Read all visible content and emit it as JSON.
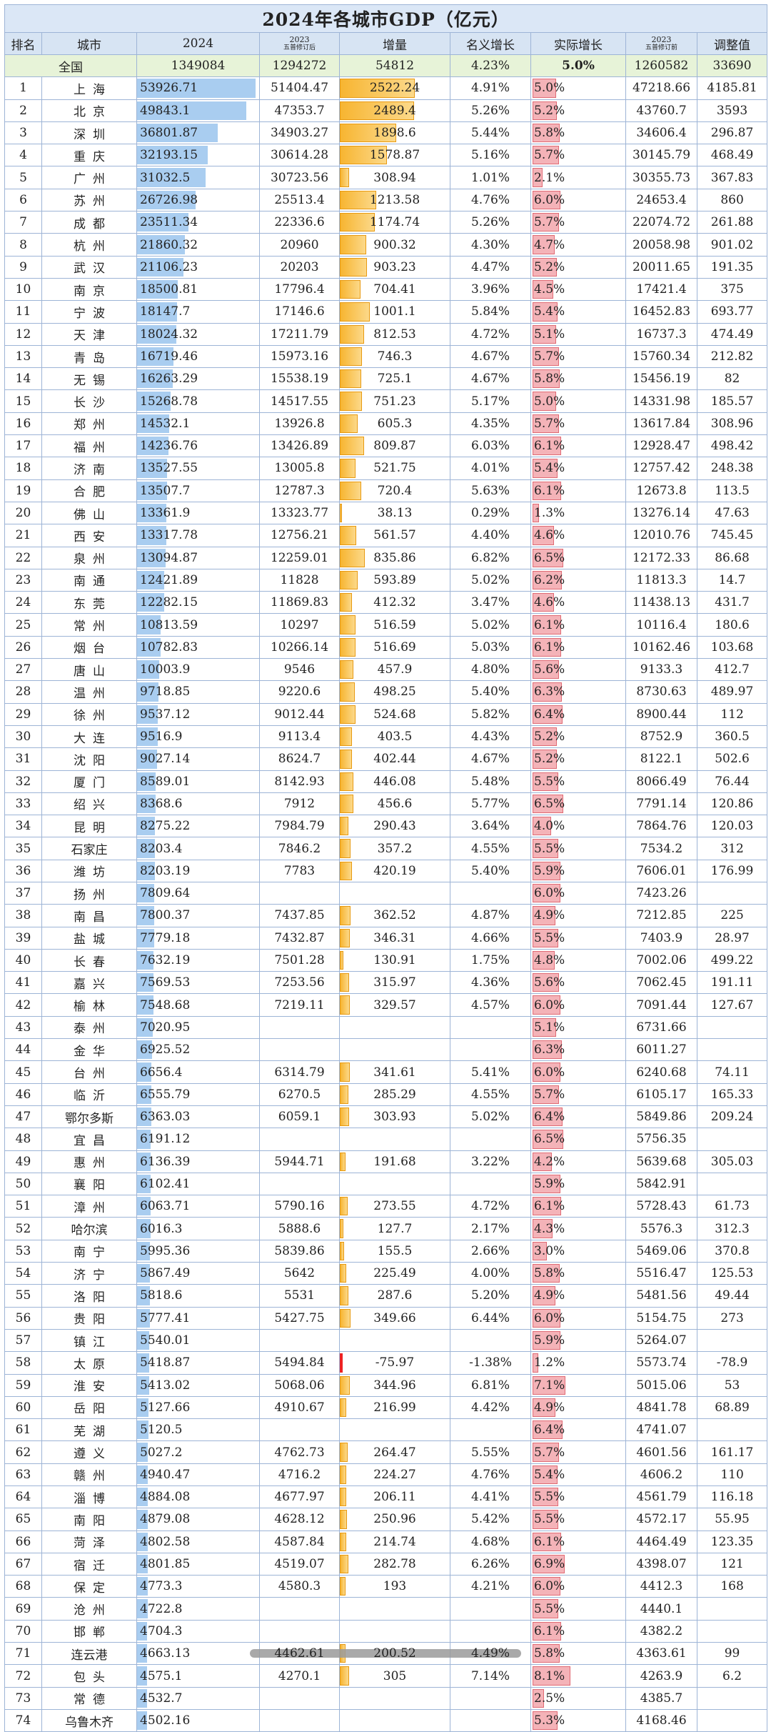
{
  "title": "2024年各城市GDP（亿元）",
  "headers": {
    "rank": "排名",
    "city": "城市",
    "gdp2024": "2024",
    "gdp2023_year": "2023",
    "gdp2023_sub": "五普修订后",
    "increase": "增量",
    "nominal": "名义增长",
    "real": "实际增长",
    "orig2023_year": "2023",
    "orig2023_sub": "五普修订前",
    "adjust": "调整值"
  },
  "national": {
    "label": "全国",
    "gdp2024": "1349084",
    "gdp2023": "1294272",
    "increase": "54812",
    "nominal": "4.23%",
    "real": "5.0%",
    "orig2023": "1260582",
    "adjust": "33690"
  },
  "rows": [
    {
      "rank": "1",
      "city": "上海",
      "gdp2024": "53926.71",
      "gdp2023": "51404.47",
      "increase": "2522.24",
      "nominal": "4.91%",
      "real": "5.0%",
      "orig2023": "47218.66",
      "adjust": "4185.81"
    },
    {
      "rank": "2",
      "city": "北京",
      "gdp2024": "49843.1",
      "gdp2023": "47353.7",
      "increase": "2489.4",
      "nominal": "5.26%",
      "real": "5.2%",
      "orig2023": "43760.7",
      "adjust": "3593"
    },
    {
      "rank": "3",
      "city": "深圳",
      "gdp2024": "36801.87",
      "gdp2023": "34903.27",
      "increase": "1898.6",
      "nominal": "5.44%",
      "real": "5.8%",
      "orig2023": "34606.4",
      "adjust": "296.87"
    },
    {
      "rank": "4",
      "city": "重庆",
      "gdp2024": "32193.15",
      "gdp2023": "30614.28",
      "increase": "1578.87",
      "nominal": "5.16%",
      "real": "5.7%",
      "orig2023": "30145.79",
      "adjust": "468.49"
    },
    {
      "rank": "5",
      "city": "广州",
      "gdp2024": "31032.5",
      "gdp2023": "30723.56",
      "increase": "308.94",
      "nominal": "1.01%",
      "real": "2.1%",
      "orig2023": "30355.73",
      "adjust": "367.83"
    },
    {
      "rank": "6",
      "city": "苏州",
      "gdp2024": "26726.98",
      "gdp2023": "25513.4",
      "increase": "1213.58",
      "nominal": "4.76%",
      "real": "6.0%",
      "orig2023": "24653.4",
      "adjust": "860"
    },
    {
      "rank": "7",
      "city": "成都",
      "gdp2024": "23511.34",
      "gdp2023": "22336.6",
      "increase": "1174.74",
      "nominal": "5.26%",
      "real": "5.7%",
      "orig2023": "22074.72",
      "adjust": "261.88"
    },
    {
      "rank": "8",
      "city": "杭州",
      "gdp2024": "21860.32",
      "gdp2023": "20960",
      "increase": "900.32",
      "nominal": "4.30%",
      "real": "4.7%",
      "orig2023": "20058.98",
      "adjust": "901.02"
    },
    {
      "rank": "9",
      "city": "武汉",
      "gdp2024": "21106.23",
      "gdp2023": "20203",
      "increase": "903.23",
      "nominal": "4.47%",
      "real": "5.2%",
      "orig2023": "20011.65",
      "adjust": "191.35"
    },
    {
      "rank": "10",
      "city": "南京",
      "gdp2024": "18500.81",
      "gdp2023": "17796.4",
      "increase": "704.41",
      "nominal": "3.96%",
      "real": "4.5%",
      "orig2023": "17421.4",
      "adjust": "375"
    },
    {
      "rank": "11",
      "city": "宁波",
      "gdp2024": "18147.7",
      "gdp2023": "17146.6",
      "increase": "1001.1",
      "nominal": "5.84%",
      "real": "5.4%",
      "orig2023": "16452.83",
      "adjust": "693.77"
    },
    {
      "rank": "12",
      "city": "天津",
      "gdp2024": "18024.32",
      "gdp2023": "17211.79",
      "increase": "812.53",
      "nominal": "4.72%",
      "real": "5.1%",
      "orig2023": "16737.3",
      "adjust": "474.49"
    },
    {
      "rank": "13",
      "city": "青岛",
      "gdp2024": "16719.46",
      "gdp2023": "15973.16",
      "increase": "746.3",
      "nominal": "4.67%",
      "real": "5.7%",
      "orig2023": "15760.34",
      "adjust": "212.82"
    },
    {
      "rank": "14",
      "city": "无锡",
      "gdp2024": "16263.29",
      "gdp2023": "15538.19",
      "increase": "725.1",
      "nominal": "4.67%",
      "real": "5.8%",
      "orig2023": "15456.19",
      "adjust": "82"
    },
    {
      "rank": "15",
      "city": "长沙",
      "gdp2024": "15268.78",
      "gdp2023": "14517.55",
      "increase": "751.23",
      "nominal": "5.17%",
      "real": "5.0%",
      "orig2023": "14331.98",
      "adjust": "185.57"
    },
    {
      "rank": "16",
      "city": "郑州",
      "gdp2024": "14532.1",
      "gdp2023": "13926.8",
      "increase": "605.3",
      "nominal": "4.35%",
      "real": "5.7%",
      "orig2023": "13617.84",
      "adjust": "308.96"
    },
    {
      "rank": "17",
      "city": "福州",
      "gdp2024": "14236.76",
      "gdp2023": "13426.89",
      "increase": "809.87",
      "nominal": "6.03%",
      "real": "6.1%",
      "orig2023": "12928.47",
      "adjust": "498.42"
    },
    {
      "rank": "18",
      "city": "济南",
      "gdp2024": "13527.55",
      "gdp2023": "13005.8",
      "increase": "521.75",
      "nominal": "4.01%",
      "real": "5.4%",
      "orig2023": "12757.42",
      "adjust": "248.38"
    },
    {
      "rank": "19",
      "city": "合肥",
      "gdp2024": "13507.7",
      "gdp2023": "12787.3",
      "increase": "720.4",
      "nominal": "5.63%",
      "real": "6.1%",
      "orig2023": "12673.8",
      "adjust": "113.5"
    },
    {
      "rank": "20",
      "city": "佛山",
      "gdp2024": "13361.9",
      "gdp2023": "13323.77",
      "increase": "38.13",
      "nominal": "0.29%",
      "real": "1.3%",
      "orig2023": "13276.14",
      "adjust": "47.63"
    },
    {
      "rank": "21",
      "city": "西安",
      "gdp2024": "13317.78",
      "gdp2023": "12756.21",
      "increase": "561.57",
      "nominal": "4.40%",
      "real": "4.6%",
      "orig2023": "12010.76",
      "adjust": "745.45"
    },
    {
      "rank": "22",
      "city": "泉州",
      "gdp2024": "13094.87",
      "gdp2023": "12259.01",
      "increase": "835.86",
      "nominal": "6.82%",
      "real": "6.5%",
      "orig2023": "12172.33",
      "adjust": "86.68"
    },
    {
      "rank": "23",
      "city": "南通",
      "gdp2024": "12421.89",
      "gdp2023": "11828",
      "increase": "593.89",
      "nominal": "5.02%",
      "real": "6.2%",
      "orig2023": "11813.3",
      "adjust": "14.7"
    },
    {
      "rank": "24",
      "city": "东莞",
      "gdp2024": "12282.15",
      "gdp2023": "11869.83",
      "increase": "412.32",
      "nominal": "3.47%",
      "real": "4.6%",
      "orig2023": "11438.13",
      "adjust": "431.7"
    },
    {
      "rank": "25",
      "city": "常州",
      "gdp2024": "10813.59",
      "gdp2023": "10297",
      "increase": "516.59",
      "nominal": "5.02%",
      "real": "6.1%",
      "orig2023": "10116.4",
      "adjust": "180.6"
    },
    {
      "rank": "26",
      "city": "烟台",
      "gdp2024": "10782.83",
      "gdp2023": "10266.14",
      "increase": "516.69",
      "nominal": "5.03%",
      "real": "6.1%",
      "orig2023": "10162.46",
      "adjust": "103.68"
    },
    {
      "rank": "27",
      "city": "唐山",
      "gdp2024": "10003.9",
      "gdp2023": "9546",
      "increase": "457.9",
      "nominal": "4.80%",
      "real": "5.6%",
      "orig2023": "9133.3",
      "adjust": "412.7"
    },
    {
      "rank": "28",
      "city": "温州",
      "gdp2024": "9718.85",
      "gdp2023": "9220.6",
      "increase": "498.25",
      "nominal": "5.40%",
      "real": "6.3%",
      "orig2023": "8730.63",
      "adjust": "489.97"
    },
    {
      "rank": "29",
      "city": "徐州",
      "gdp2024": "9537.12",
      "gdp2023": "9012.44",
      "increase": "524.68",
      "nominal": "5.82%",
      "real": "6.4%",
      "orig2023": "8900.44",
      "adjust": "112"
    },
    {
      "rank": "30",
      "city": "大连",
      "gdp2024": "9516.9",
      "gdp2023": "9113.4",
      "increase": "403.5",
      "nominal": "4.43%",
      "real": "5.2%",
      "orig2023": "8752.9",
      "adjust": "360.5"
    },
    {
      "rank": "31",
      "city": "沈阳",
      "gdp2024": "9027.14",
      "gdp2023": "8624.7",
      "increase": "402.44",
      "nominal": "4.67%",
      "real": "5.2%",
      "orig2023": "8122.1",
      "adjust": "502.6"
    },
    {
      "rank": "32",
      "city": "厦门",
      "gdp2024": "8589.01",
      "gdp2023": "8142.93",
      "increase": "446.08",
      "nominal": "5.48%",
      "real": "5.5%",
      "orig2023": "8066.49",
      "adjust": "76.44"
    },
    {
      "rank": "33",
      "city": "绍兴",
      "gdp2024": "8368.6",
      "gdp2023": "7912",
      "increase": "456.6",
      "nominal": "5.77%",
      "real": "6.5%",
      "orig2023": "7791.14",
      "adjust": "120.86"
    },
    {
      "rank": "34",
      "city": "昆明",
      "gdp2024": "8275.22",
      "gdp2023": "7984.79",
      "increase": "290.43",
      "nominal": "3.64%",
      "real": "4.0%",
      "orig2023": "7864.76",
      "adjust": "120.03"
    },
    {
      "rank": "35",
      "city": "石家庄",
      "gdp2024": "8203.4",
      "gdp2023": "7846.2",
      "increase": "357.2",
      "nominal": "4.55%",
      "real": "5.5%",
      "orig2023": "7534.2",
      "adjust": "312"
    },
    {
      "rank": "36",
      "city": "潍坊",
      "gdp2024": "8203.19",
      "gdp2023": "7783",
      "increase": "420.19",
      "nominal": "5.40%",
      "real": "5.9%",
      "orig2023": "7606.01",
      "adjust": "176.99"
    },
    {
      "rank": "37",
      "city": "扬州",
      "gdp2024": "7809.64",
      "gdp2023": "",
      "increase": "",
      "nominal": "",
      "real": "6.0%",
      "orig2023": "7423.26",
      "adjust": ""
    },
    {
      "rank": "38",
      "city": "南昌",
      "gdp2024": "7800.37",
      "gdp2023": "7437.85",
      "increase": "362.52",
      "nominal": "4.87%",
      "real": "4.9%",
      "orig2023": "7212.85",
      "adjust": "225"
    },
    {
      "rank": "39",
      "city": "盐城",
      "gdp2024": "7779.18",
      "gdp2023": "7432.87",
      "increase": "346.31",
      "nominal": "4.66%",
      "real": "5.5%",
      "orig2023": "7403.9",
      "adjust": "28.97"
    },
    {
      "rank": "40",
      "city": "长春",
      "gdp2024": "7632.19",
      "gdp2023": "7501.28",
      "increase": "130.91",
      "nominal": "1.75%",
      "real": "4.8%",
      "orig2023": "7002.06",
      "adjust": "499.22"
    },
    {
      "rank": "41",
      "city": "嘉兴",
      "gdp2024": "7569.53",
      "gdp2023": "7253.56",
      "increase": "315.97",
      "nominal": "4.36%",
      "real": "5.6%",
      "orig2023": "7062.45",
      "adjust": "191.11"
    },
    {
      "rank": "42",
      "city": "榆林",
      "gdp2024": "7548.68",
      "gdp2023": "7219.11",
      "increase": "329.57",
      "nominal": "4.57%",
      "real": "6.0%",
      "orig2023": "7091.44",
      "adjust": "127.67"
    },
    {
      "rank": "43",
      "city": "泰州",
      "gdp2024": "7020.95",
      "gdp2023": "",
      "increase": "",
      "nominal": "",
      "real": "5.1%",
      "orig2023": "6731.66",
      "adjust": ""
    },
    {
      "rank": "44",
      "city": "金华",
      "gdp2024": "6925.52",
      "gdp2023": "",
      "increase": "",
      "nominal": "",
      "real": "6.3%",
      "orig2023": "6011.27",
      "adjust": ""
    },
    {
      "rank": "45",
      "city": "台州",
      "gdp2024": "6656.4",
      "gdp2023": "6314.79",
      "increase": "341.61",
      "nominal": "5.41%",
      "real": "6.0%",
      "orig2023": "6240.68",
      "adjust": "74.11"
    },
    {
      "rank": "46",
      "city": "临沂",
      "gdp2024": "6555.79",
      "gdp2023": "6270.5",
      "increase": "285.29",
      "nominal": "4.55%",
      "real": "5.7%",
      "orig2023": "6105.17",
      "adjust": "165.33"
    },
    {
      "rank": "47",
      "city": "鄂尔多斯",
      "gdp2024": "6363.03",
      "gdp2023": "6059.1",
      "increase": "303.93",
      "nominal": "5.02%",
      "real": "6.4%",
      "orig2023": "5849.86",
      "adjust": "209.24"
    },
    {
      "rank": "48",
      "city": "宜昌",
      "gdp2024": "6191.12",
      "gdp2023": "",
      "increase": "",
      "nominal": "",
      "real": "6.5%",
      "orig2023": "5756.35",
      "adjust": ""
    },
    {
      "rank": "49",
      "city": "惠州",
      "gdp2024": "6136.39",
      "gdp2023": "5944.71",
      "increase": "191.68",
      "nominal": "3.22%",
      "real": "4.2%",
      "orig2023": "5639.68",
      "adjust": "305.03"
    },
    {
      "rank": "50",
      "city": "襄阳",
      "gdp2024": "6102.41",
      "gdp2023": "",
      "increase": "",
      "nominal": "",
      "real": "5.9%",
      "orig2023": "5842.91",
      "adjust": ""
    },
    {
      "rank": "51",
      "city": "漳州",
      "gdp2024": "6063.71",
      "gdp2023": "5790.16",
      "increase": "273.55",
      "nominal": "4.72%",
      "real": "6.1%",
      "orig2023": "5728.43",
      "adjust": "61.73"
    },
    {
      "rank": "52",
      "city": "哈尔滨",
      "gdp2024": "6016.3",
      "gdp2023": "5888.6",
      "increase": "127.7",
      "nominal": "2.17%",
      "real": "4.3%",
      "orig2023": "5576.3",
      "adjust": "312.3"
    },
    {
      "rank": "53",
      "city": "南宁",
      "gdp2024": "5995.36",
      "gdp2023": "5839.86",
      "increase": "155.5",
      "nominal": "2.66%",
      "real": "3.0%",
      "orig2023": "5469.06",
      "adjust": "370.8"
    },
    {
      "rank": "54",
      "city": "济宁",
      "gdp2024": "5867.49",
      "gdp2023": "5642",
      "increase": "225.49",
      "nominal": "4.00%",
      "real": "5.8%",
      "orig2023": "5516.47",
      "adjust": "125.53"
    },
    {
      "rank": "55",
      "city": "洛阳",
      "gdp2024": "5818.6",
      "gdp2023": "5531",
      "increase": "287.6",
      "nominal": "5.20%",
      "real": "4.9%",
      "orig2023": "5481.56",
      "adjust": "49.44"
    },
    {
      "rank": "56",
      "city": "贵阳",
      "gdp2024": "5777.41",
      "gdp2023": "5427.75",
      "increase": "349.66",
      "nominal": "6.44%",
      "real": "6.0%",
      "orig2023": "5154.75",
      "adjust": "273"
    },
    {
      "rank": "57",
      "city": "镇江",
      "gdp2024": "5540.01",
      "gdp2023": "",
      "increase": "",
      "nominal": "",
      "real": "5.9%",
      "orig2023": "5264.07",
      "adjust": ""
    },
    {
      "rank": "58",
      "city": "太原",
      "gdp2024": "5418.87",
      "gdp2023": "5494.84",
      "increase": "-75.97",
      "nominal": "-1.38%",
      "real": "1.2%",
      "orig2023": "5573.74",
      "adjust": "-78.9"
    },
    {
      "rank": "59",
      "city": "淮安",
      "gdp2024": "5413.02",
      "gdp2023": "5068.06",
      "increase": "344.96",
      "nominal": "6.81%",
      "real": "7.1%",
      "orig2023": "5015.06",
      "adjust": "53"
    },
    {
      "rank": "60",
      "city": "岳阳",
      "gdp2024": "5127.66",
      "gdp2023": "4910.67",
      "increase": "216.99",
      "nominal": "4.42%",
      "real": "4.9%",
      "orig2023": "4841.78",
      "adjust": "68.89"
    },
    {
      "rank": "61",
      "city": "芜湖",
      "gdp2024": "5120.5",
      "gdp2023": "",
      "increase": "",
      "nominal": "",
      "real": "6.4%",
      "orig2023": "4741.07",
      "adjust": ""
    },
    {
      "rank": "62",
      "city": "遵义",
      "gdp2024": "5027.2",
      "gdp2023": "4762.73",
      "increase": "264.47",
      "nominal": "5.55%",
      "real": "5.7%",
      "orig2023": "4601.56",
      "adjust": "161.17"
    },
    {
      "rank": "63",
      "city": "赣州",
      "gdp2024": "4940.47",
      "gdp2023": "4716.2",
      "increase": "224.27",
      "nominal": "4.76%",
      "real": "5.4%",
      "orig2023": "4606.2",
      "adjust": "110"
    },
    {
      "rank": "64",
      "city": "淄博",
      "gdp2024": "4884.08",
      "gdp2023": "4677.97",
      "increase": "206.11",
      "nominal": "4.41%",
      "real": "5.5%",
      "orig2023": "4561.79",
      "adjust": "116.18"
    },
    {
      "rank": "65",
      "city": "南阳",
      "gdp2024": "4879.08",
      "gdp2023": "4628.12",
      "increase": "250.96",
      "nominal": "5.42%",
      "real": "5.5%",
      "orig2023": "4572.17",
      "adjust": "55.95"
    },
    {
      "rank": "66",
      "city": "菏泽",
      "gdp2024": "4802.58",
      "gdp2023": "4587.84",
      "increase": "214.74",
      "nominal": "4.68%",
      "real": "6.1%",
      "orig2023": "4464.49",
      "adjust": "123.35"
    },
    {
      "rank": "67",
      "city": "宿迁",
      "gdp2024": "4801.85",
      "gdp2023": "4519.07",
      "increase": "282.78",
      "nominal": "6.26%",
      "real": "6.9%",
      "orig2023": "4398.07",
      "adjust": "121"
    },
    {
      "rank": "68",
      "city": "保定",
      "gdp2024": "4773.3",
      "gdp2023": "4580.3",
      "increase": "193",
      "nominal": "4.21%",
      "real": "6.0%",
      "orig2023": "4412.3",
      "adjust": "168"
    },
    {
      "rank": "69",
      "city": "沧州",
      "gdp2024": "4722.8",
      "gdp2023": "",
      "increase": "",
      "nominal": "",
      "real": "5.5%",
      "orig2023": "4440.1",
      "adjust": ""
    },
    {
      "rank": "70",
      "city": "邯郸",
      "gdp2024": "4704.3",
      "gdp2023": "",
      "increase": "",
      "nominal": "",
      "real": "6.1%",
      "orig2023": "4382.2",
      "adjust": ""
    },
    {
      "rank": "71",
      "city": "连云港",
      "gdp2024": "4663.13",
      "gdp2023": "4462.61",
      "increase": "200.52",
      "nominal": "4.49%",
      "real": "5.8%",
      "orig2023": "4363.61",
      "adjust": "99"
    },
    {
      "rank": "72",
      "city": "包头",
      "gdp2024": "4575.1",
      "gdp2023": "4270.1",
      "increase": "305",
      "nominal": "7.14%",
      "real": "8.1%",
      "orig2023": "4263.9",
      "adjust": "6.2"
    },
    {
      "rank": "73",
      "city": "常德",
      "gdp2024": "4532.7",
      "gdp2023": "",
      "increase": "",
      "nominal": "",
      "real": "2.5%",
      "orig2023": "4385.7",
      "adjust": ""
    },
    {
      "rank": "74",
      "city": "乌鲁木齐",
      "gdp2024": "4502.16",
      "gdp2023": "",
      "increase": "",
      "nominal": "",
      "real": "5.3%",
      "orig2023": "4168.46",
      "adjust": ""
    }
  ],
  "colors": {
    "header_bg": "#d7e4f3",
    "national_bg": "#e7f3d8",
    "gdp_bar": "#a9cdf0",
    "increase_bar": "#f7b531",
    "real_bar": "#f4b3b8",
    "negative_bar": "#e22222"
  }
}
